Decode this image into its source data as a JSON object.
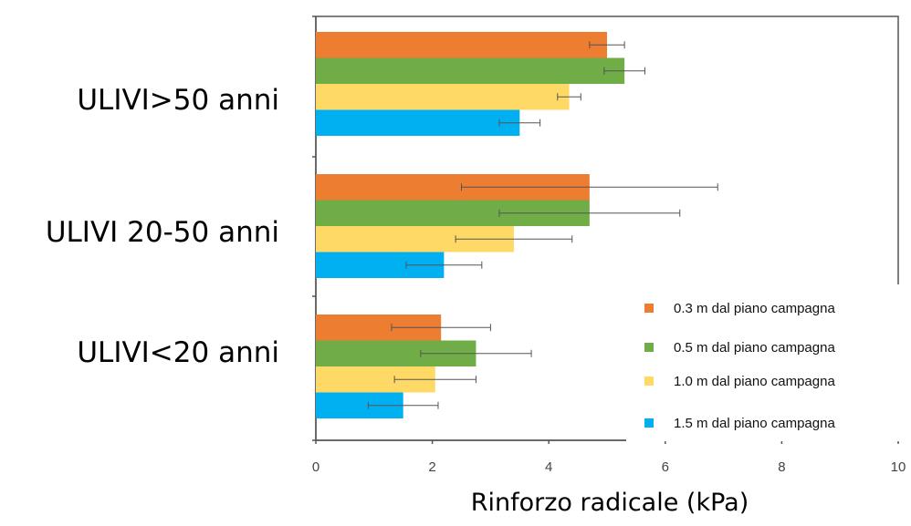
{
  "chart_data": {
    "type": "bar",
    "orientation": "horizontal",
    "title": "",
    "xlabel": "Rinforzo radicale (kPa)",
    "ylabel": "",
    "xlim": [
      0,
      10
    ],
    "xticks": [
      "0",
      "2",
      "4",
      "6",
      "8",
      "10"
    ],
    "grid": false,
    "legend_position": "bottom-right",
    "categories": [
      "ULIVI>50 anni",
      "ULIVI 20-50 anni",
      "ULIVI<20 anni"
    ],
    "series": [
      {
        "name": "0.3 m dal piano campagna",
        "color": "#ED7D31",
        "values": [
          5.0,
          4.7,
          2.15
        ],
        "errors": [
          0.3,
          2.2,
          0.85
        ]
      },
      {
        "name": "0.5 m dal piano campagna",
        "color": "#70AD47",
        "values": [
          5.3,
          4.7,
          2.75
        ],
        "errors": [
          0.35,
          1.55,
          0.95
        ]
      },
      {
        "name": "1.0 m dal piano campagna",
        "color": "#FFD966",
        "values": [
          4.35,
          3.4,
          2.05
        ],
        "errors": [
          0.2,
          1.0,
          0.7
        ]
      },
      {
        "name": "1.5 m dal piano campagna",
        "color": "#00B0F0",
        "values": [
          3.5,
          2.2,
          1.5
        ],
        "errors": [
          0.35,
          0.65,
          0.6
        ]
      }
    ]
  }
}
